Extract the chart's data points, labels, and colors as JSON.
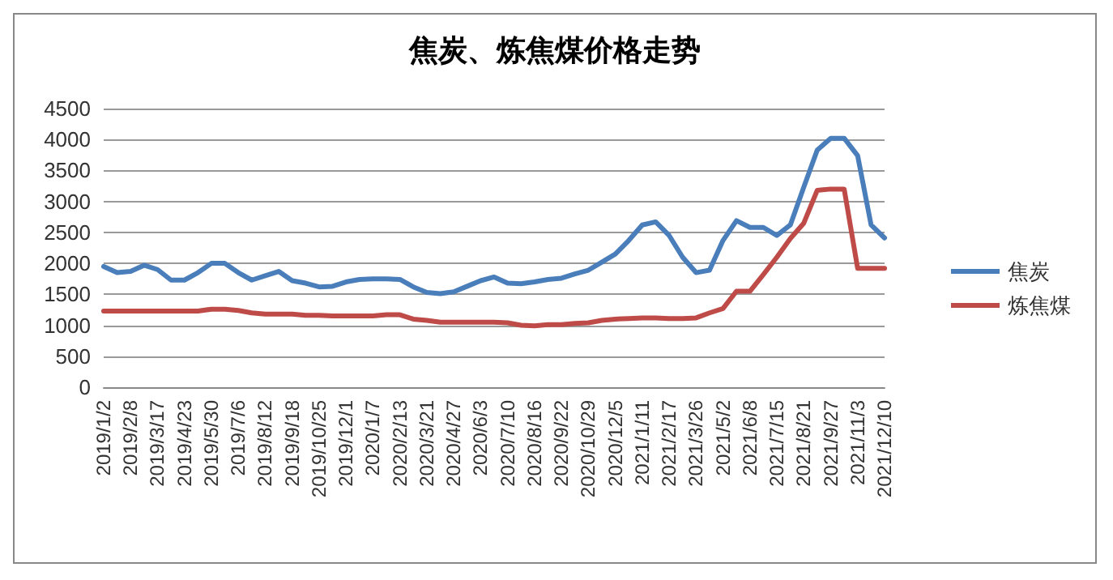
{
  "chart_data": {
    "type": "line",
    "title": "焦炭、炼焦煤价格走势",
    "categories": [
      "2019/1/2",
      null,
      "2019/2/8",
      null,
      "2019/3/17",
      null,
      "2019/4/23",
      null,
      "2019/5/30",
      null,
      "2019/7/6",
      null,
      "2019/8/12",
      null,
      "2019/9/18",
      null,
      "2019/10/25",
      null,
      "2019/12/1",
      null,
      "2020/1/7",
      null,
      "2020/2/13",
      null,
      "2020/3/21",
      null,
      "2020/4/27",
      null,
      "2020/6/3",
      null,
      "2020/7/10",
      null,
      "2020/8/16",
      null,
      "2020/9/22",
      null,
      "2020/10/29",
      null,
      "2020/12/5",
      null,
      "2021/1/11",
      null,
      "2021/2/17",
      null,
      "2021/3/26",
      null,
      "2021/5/2",
      null,
      "2021/6/8",
      null,
      "2021/7/15",
      null,
      "2021/8/21",
      null,
      "2021/9/27",
      null,
      "2021/11/3",
      null,
      "2021/12/10"
    ],
    "series": [
      {
        "name": "焦炭",
        "color": "#4a7ebb",
        "values": [
          1950,
          1850,
          1870,
          1970,
          1900,
          1730,
          1730,
          1850,
          2000,
          2000,
          1850,
          1730,
          1800,
          1870,
          1720,
          1680,
          1620,
          1630,
          1700,
          1740,
          1750,
          1750,
          1740,
          1620,
          1530,
          1510,
          1540,
          1630,
          1720,
          1780,
          1680,
          1670,
          1700,
          1740,
          1760,
          1830,
          1890,
          2020,
          2150,
          2370,
          2620,
          2670,
          2450,
          2100,
          1850,
          1890,
          2370,
          2690,
          2580,
          2580,
          2450,
          2620,
          3230,
          3830,
          4020,
          4020,
          3740,
          2620,
          2410
        ]
      },
      {
        "name": "炼焦煤",
        "color": "#be4b48",
        "values": [
          1230,
          1230,
          1230,
          1230,
          1230,
          1230,
          1230,
          1230,
          1260,
          1260,
          1240,
          1200,
          1180,
          1180,
          1180,
          1160,
          1160,
          1150,
          1150,
          1150,
          1150,
          1170,
          1170,
          1100,
          1080,
          1050,
          1050,
          1050,
          1050,
          1050,
          1040,
          1000,
          990,
          1010,
          1010,
          1030,
          1040,
          1080,
          1100,
          1110,
          1120,
          1120,
          1110,
          1110,
          1120,
          1200,
          1270,
          1550,
          1550,
          1820,
          2100,
          2400,
          2650,
          3180,
          3200,
          3200,
          1920,
          1920,
          1920
        ]
      }
    ],
    "ylim": [
      0,
      4500
    ],
    "yticks": [
      0,
      500,
      1000,
      1500,
      2000,
      2500,
      3000,
      3500,
      4000,
      4500
    ],
    "grid": "y",
    "legend": "right",
    "marker": "none",
    "line_style": "solid"
  }
}
